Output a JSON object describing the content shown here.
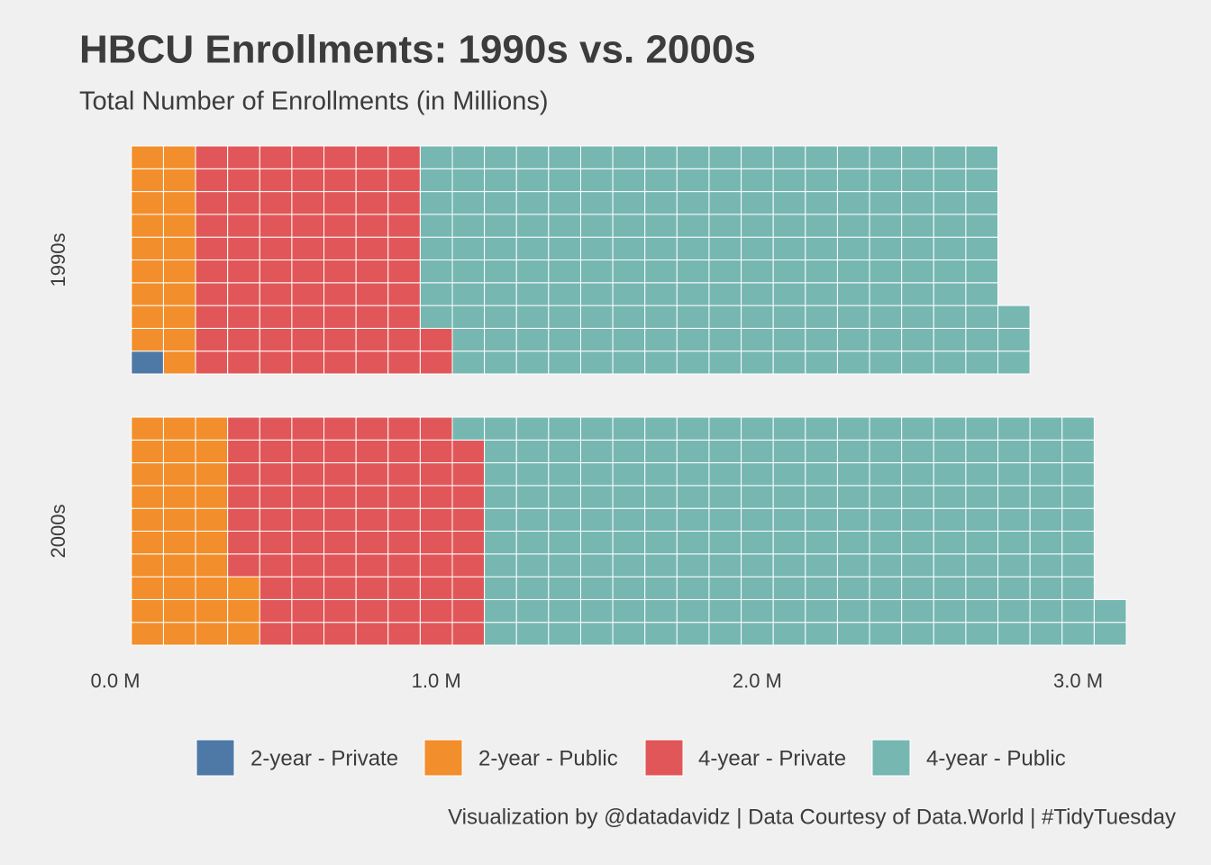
{
  "chart_data": {
    "type": "waffle",
    "title": "HBCU Enrollments: 1990s vs. 2000s",
    "subtitle": "Total Number of Enrollments (in Millions)",
    "caption": "Visualization by @datadavidz | Data Courtesy of Data.World | #TidyTuesday",
    "categories": [
      "1990s",
      "2000s"
    ],
    "series": [
      {
        "name": "2-year - Private",
        "color": "#4e79a7",
        "values": [
          0.01,
          0
        ]
      },
      {
        "name": "2-year - Public",
        "color": "#f28e2b",
        "values": [
          0.19,
          0.33
        ]
      },
      {
        "name": "4-year - Private",
        "color": "#e15759",
        "values": [
          0.72,
          0.76
        ]
      },
      {
        "name": "4-year - Public",
        "color": "#76b7b2",
        "values": [
          1.81,
          1.93
        ]
      }
    ],
    "xlim": [
      0,
      3.15
    ],
    "xticks": [
      {
        "value": 0,
        "label": "0.0 M"
      },
      {
        "value": 1,
        "label": "1.0 M"
      },
      {
        "value": 2,
        "label": "2.0 M"
      },
      {
        "value": 3,
        "label": "3.0 M"
      }
    ],
    "legend": "bottom"
  }
}
